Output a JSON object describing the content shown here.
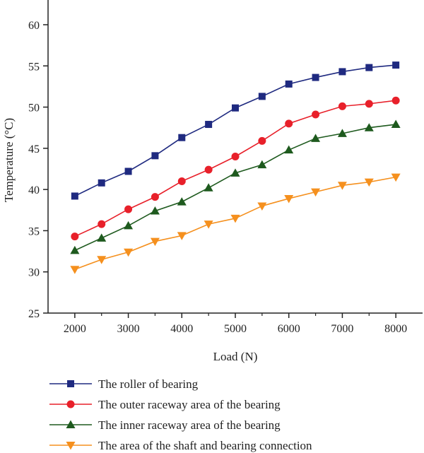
{
  "chart_data": {
    "type": "line",
    "title": "",
    "xlabel": "Load (N)",
    "ylabel": "Temperature (°C)",
    "xlim": [
      1500,
      8500
    ],
    "ylim": [
      25,
      63
    ],
    "x_ticks": [
      2000,
      3000,
      4000,
      5000,
      6000,
      7000,
      8000
    ],
    "y_ticks": [
      25,
      30,
      35,
      40,
      45,
      50,
      55,
      60
    ],
    "grid": false,
    "legend_position": "bottom",
    "x": [
      2000,
      2500,
      3000,
      3500,
      4000,
      4500,
      5000,
      5500,
      6000,
      6500,
      7000,
      7500,
      8000
    ],
    "series": [
      {
        "name": "The roller of bearing",
        "color": "#1f2a80",
        "marker": "square",
        "values": [
          39.2,
          40.8,
          42.2,
          44.1,
          46.3,
          47.9,
          49.9,
          51.3,
          52.8,
          53.6,
          54.3,
          54.8,
          55.1
        ]
      },
      {
        "name": "The outer raceway area of the bearing",
        "color": "#e8202a",
        "marker": "circle",
        "values": [
          34.3,
          35.8,
          37.6,
          39.1,
          41.0,
          42.4,
          44.0,
          45.9,
          48.0,
          49.1,
          50.1,
          50.4,
          50.8
        ]
      },
      {
        "name": "The inner raceway area of the bearing",
        "color": "#1e5a1e",
        "marker": "triangle-up",
        "values": [
          32.6,
          34.1,
          35.6,
          37.4,
          38.5,
          40.2,
          42.0,
          43.0,
          44.8,
          46.2,
          46.8,
          47.5,
          47.9
        ]
      },
      {
        "name": "The area of the shaft and bearing connection",
        "color": "#f5901e",
        "marker": "triangle-down",
        "values": [
          30.3,
          31.5,
          32.4,
          33.7,
          34.4,
          35.8,
          36.5,
          38.0,
          38.9,
          39.7,
          40.5,
          40.9,
          41.5
        ]
      }
    ]
  }
}
